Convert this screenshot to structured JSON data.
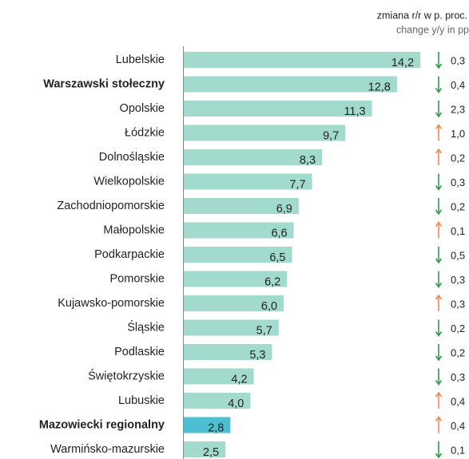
{
  "chart_data": {
    "type": "bar",
    "orientation": "horizontal",
    "header": [
      "zmiana r/r w p. proc.",
      "change y/y in pp"
    ],
    "categories": [
      "Lubelskie",
      "Warszawski stołeczny",
      "Opolskie",
      "Łódzkie",
      "Dolnośląskie",
      "Wielkopolskie",
      "Zachodniopomorskie",
      "Małopolskie",
      "Podkarpackie",
      "Pomorskie",
      "Kujawsko-pomorskie",
      "Śląskie",
      "Podlaskie",
      "Świętokrzyskie",
      "Lubuskie",
      "Mazowiecki regionalny",
      "Warmińsko-mazurskie"
    ],
    "bold": [
      false,
      true,
      false,
      false,
      false,
      false,
      false,
      false,
      false,
      false,
      false,
      false,
      false,
      false,
      false,
      true,
      false
    ],
    "values": [
      14.2,
      12.8,
      11.3,
      9.7,
      8.3,
      7.7,
      6.9,
      6.6,
      6.5,
      6.2,
      6.0,
      5.7,
      5.3,
      4.2,
      4.0,
      2.8,
      2.5
    ],
    "value_labels": [
      "14,2",
      "12,8",
      "11,3",
      "9,7",
      "8,3",
      "7,7",
      "6,9",
      "6,6",
      "6,5",
      "6,2",
      "6,0",
      "5,7",
      "5,3",
      "4,2",
      "4,0",
      "2,8",
      "2,5"
    ],
    "colors": [
      "#a3dace",
      "#a3dace",
      "#a3dace",
      "#a3dace",
      "#a3dace",
      "#a3dace",
      "#a3dace",
      "#a3dace",
      "#a3dace",
      "#a3dace",
      "#a3dace",
      "#a3dace",
      "#a3dace",
      "#a3dace",
      "#a3dace",
      "#4cc0d2",
      "#a3dace"
    ],
    "changes": [
      0.3,
      0.4,
      2.3,
      1.0,
      0.2,
      0.3,
      0.2,
      0.1,
      0.5,
      0.3,
      0.3,
      0.2,
      0.2,
      0.3,
      0.4,
      0.4,
      0.1
    ],
    "change_labels": [
      "0,3",
      "0,4",
      "2,3",
      "1,0",
      "0,2",
      "0,3",
      "0,2",
      "0,1",
      "0,5",
      "0,3",
      "0,3",
      "0,2",
      "0,2",
      "0,3",
      "0,4",
      "0,4",
      "0,1"
    ],
    "change_directions": [
      "down",
      "down",
      "down",
      "up",
      "up",
      "down",
      "down",
      "up",
      "down",
      "down",
      "up",
      "down",
      "down",
      "down",
      "up",
      "up",
      "down"
    ],
    "arrow_colors": {
      "down": "#2f9a52",
      "up": "#f08a55"
    }
  }
}
